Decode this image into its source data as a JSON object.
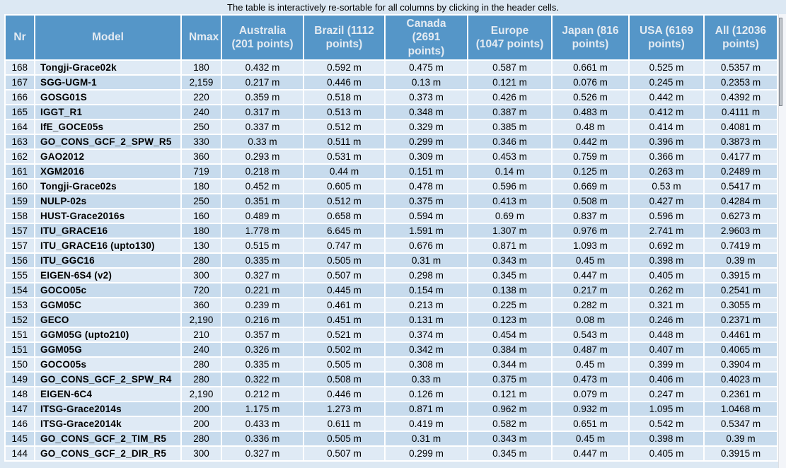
{
  "caption": "The table is interactively re-sortable for all columns by clicking in the header cells.",
  "colors": {
    "header_bg": "#5596c8",
    "header_text": "#e4ebf2",
    "row_light": "#dfeaf5",
    "row_dark": "#c7dbed",
    "page_bg": "#dce8f3",
    "grid": "#ffffff"
  },
  "table": {
    "columns": [
      {
        "key": "nr",
        "label": "Nr"
      },
      {
        "key": "model",
        "label": "Model"
      },
      {
        "key": "nmax",
        "label": "Nmax"
      },
      {
        "key": "australia",
        "label": "Australia (201 points)"
      },
      {
        "key": "brazil",
        "label": "Brazil (1112 points)"
      },
      {
        "key": "canada",
        "label": "Canada (2691 points)"
      },
      {
        "key": "europe",
        "label": "Europe (1047 points)"
      },
      {
        "key": "japan",
        "label": "Japan (816 points)"
      },
      {
        "key": "usa",
        "label": "USA (6169 points)"
      },
      {
        "key": "all",
        "label": "All (12036 points)"
      }
    ],
    "rows": [
      [
        "168",
        "Tongji-Grace02k",
        "180",
        "0.432 m",
        "0.592 m",
        "0.475 m",
        "0.587 m",
        "0.661 m",
        "0.525 m",
        "0.5357 m"
      ],
      [
        "167",
        "SGG-UGM-1",
        "2,159",
        "0.217 m",
        "0.446 m",
        "0.13 m",
        "0.121 m",
        "0.076 m",
        "0.245 m",
        "0.2353 m"
      ],
      [
        "166",
        "GOSG01S",
        "220",
        "0.359 m",
        "0.518 m",
        "0.373 m",
        "0.426 m",
        "0.526 m",
        "0.442 m",
        "0.4392 m"
      ],
      [
        "165",
        "IGGT_R1",
        "240",
        "0.317 m",
        "0.513 m",
        "0.348 m",
        "0.387 m",
        "0.483 m",
        "0.412 m",
        "0.4111 m"
      ],
      [
        "164",
        "IfE_GOCE05s",
        "250",
        "0.337 m",
        "0.512 m",
        "0.329 m",
        "0.385 m",
        "0.48 m",
        "0.414 m",
        "0.4081 m"
      ],
      [
        "163",
        "GO_CONS_GCF_2_SPW_R5",
        "330",
        "0.33 m",
        "0.511 m",
        "0.299 m",
        "0.346 m",
        "0.442 m",
        "0.396 m",
        "0.3873 m"
      ],
      [
        "162",
        "GAO2012",
        "360",
        "0.293 m",
        "0.531 m",
        "0.309 m",
        "0.453 m",
        "0.759 m",
        "0.366 m",
        "0.4177 m"
      ],
      [
        "161",
        "XGM2016",
        "719",
        "0.218 m",
        "0.44 m",
        "0.151 m",
        "0.14 m",
        "0.125 m",
        "0.263 m",
        "0.2489 m"
      ],
      [
        "160",
        "Tongji-Grace02s",
        "180",
        "0.452 m",
        "0.605 m",
        "0.478 m",
        "0.596 m",
        "0.669 m",
        "0.53 m",
        "0.5417 m"
      ],
      [
        "159",
        "NULP-02s",
        "250",
        "0.351 m",
        "0.512 m",
        "0.375 m",
        "0.413 m",
        "0.508 m",
        "0.427 m",
        "0.4284 m"
      ],
      [
        "158",
        "HUST-Grace2016s",
        "160",
        "0.489 m",
        "0.658 m",
        "0.594 m",
        "0.69 m",
        "0.837 m",
        "0.596 m",
        "0.6273 m"
      ],
      [
        "157",
        "ITU_GRACE16",
        "180",
        "1.778 m",
        "6.645 m",
        "1.591 m",
        "1.307 m",
        "0.976 m",
        "2.741 m",
        "2.9603 m"
      ],
      [
        "157",
        "ITU_GRACE16 (upto130)",
        "130",
        "0.515 m",
        "0.747 m",
        "0.676 m",
        "0.871 m",
        "1.093 m",
        "0.692 m",
        "0.7419 m"
      ],
      [
        "156",
        "ITU_GGC16",
        "280",
        "0.335 m",
        "0.505 m",
        "0.31 m",
        "0.343 m",
        "0.45 m",
        "0.398 m",
        "0.39 m"
      ],
      [
        "155",
        "EIGEN-6S4 (v2)",
        "300",
        "0.327 m",
        "0.507 m",
        "0.298 m",
        "0.345 m",
        "0.447 m",
        "0.405 m",
        "0.3915 m"
      ],
      [
        "154",
        "GOCO05c",
        "720",
        "0.221 m",
        "0.445 m",
        "0.154 m",
        "0.138 m",
        "0.217 m",
        "0.262 m",
        "0.2541 m"
      ],
      [
        "153",
        "GGM05C",
        "360",
        "0.239 m",
        "0.461 m",
        "0.213 m",
        "0.225 m",
        "0.282 m",
        "0.321 m",
        "0.3055 m"
      ],
      [
        "152",
        "GECO",
        "2,190",
        "0.216 m",
        "0.451 m",
        "0.131 m",
        "0.123 m",
        "0.08 m",
        "0.246 m",
        "0.2371 m"
      ],
      [
        "151",
        "GGM05G (upto210)",
        "210",
        "0.357 m",
        "0.521 m",
        "0.374 m",
        "0.454 m",
        "0.543 m",
        "0.448 m",
        "0.4461 m"
      ],
      [
        "151",
        "GGM05G",
        "240",
        "0.326 m",
        "0.502 m",
        "0.342 m",
        "0.384 m",
        "0.487 m",
        "0.407 m",
        "0.4065 m"
      ],
      [
        "150",
        "GOCO05s",
        "280",
        "0.335 m",
        "0.505 m",
        "0.308 m",
        "0.344 m",
        "0.45 m",
        "0.399 m",
        "0.3904 m"
      ],
      [
        "149",
        "GO_CONS_GCF_2_SPW_R4",
        "280",
        "0.322 m",
        "0.508 m",
        "0.33 m",
        "0.375 m",
        "0.473 m",
        "0.406 m",
        "0.4023 m"
      ],
      [
        "148",
        "EIGEN-6C4",
        "2,190",
        "0.212 m",
        "0.446 m",
        "0.126 m",
        "0.121 m",
        "0.079 m",
        "0.247 m",
        "0.2361 m"
      ],
      [
        "147",
        "ITSG-Grace2014s",
        "200",
        "1.175 m",
        "1.273 m",
        "0.871 m",
        "0.962 m",
        "0.932 m",
        "1.095 m",
        "1.0468 m"
      ],
      [
        "146",
        "ITSG-Grace2014k",
        "200",
        "0.433 m",
        "0.611 m",
        "0.419 m",
        "0.582 m",
        "0.651 m",
        "0.542 m",
        "0.5347 m"
      ],
      [
        "145",
        "GO_CONS_GCF_2_TIM_R5",
        "280",
        "0.336 m",
        "0.505 m",
        "0.31 m",
        "0.343 m",
        "0.45 m",
        "0.398 m",
        "0.39 m"
      ],
      [
        "144",
        "GO_CONS_GCF_2_DIR_R5",
        "300",
        "0.327 m",
        "0.507 m",
        "0.299 m",
        "0.345 m",
        "0.447 m",
        "0.405 m",
        "0.3915 m"
      ]
    ]
  }
}
